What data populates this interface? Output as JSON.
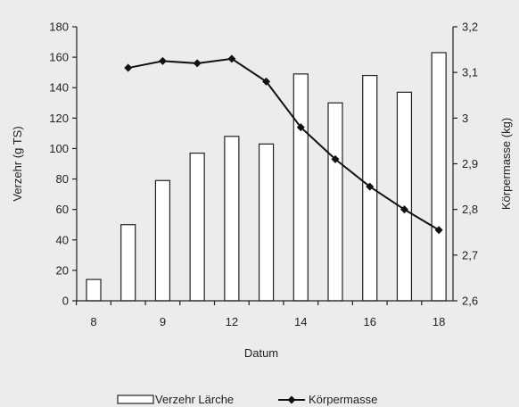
{
  "chart_data": {
    "type": "bar",
    "xlabel": "Datum",
    "ylabel_left": "Verzehr (g TS)",
    "ylabel_right": "Körpermasse (kg)",
    "x_tick_labels": [
      "8",
      "9",
      "12",
      "14",
      "16",
      "18"
    ],
    "categories": [
      "8",
      "",
      "9",
      "",
      "12",
      "",
      "14",
      "",
      "16",
      "",
      "18"
    ],
    "y_left": {
      "range": [
        0,
        180
      ],
      "ticks": [
        0,
        20,
        40,
        60,
        80,
        100,
        120,
        140,
        160,
        180
      ],
      "tick_labels": [
        "0",
        "20",
        "40",
        "60",
        "80",
        "100",
        "120",
        "140",
        "160",
        "180"
      ]
    },
    "y_right": {
      "range": [
        2.6,
        3.2
      ],
      "ticks": [
        2.6,
        2.7,
        2.8,
        2.9,
        3.0,
        3.1,
        3.2
      ],
      "tick_labels": [
        "2,6",
        "2,7",
        "2,8",
        "2,9",
        "3",
        "3,1",
        "3,2"
      ]
    },
    "series": [
      {
        "name": "Verzehr Lärche",
        "type": "bar",
        "axis": "left",
        "values": [
          14,
          50,
          79,
          97,
          108,
          103,
          149,
          130,
          148,
          137,
          163
        ]
      },
      {
        "name": "Körpermasse",
        "type": "line",
        "axis": "right",
        "values": [
          null,
          3.11,
          3.125,
          3.12,
          3.13,
          3.08,
          2.98,
          2.91,
          2.85,
          2.8,
          2.755
        ]
      }
    ],
    "legend_position": "bottom",
    "grid": false
  }
}
